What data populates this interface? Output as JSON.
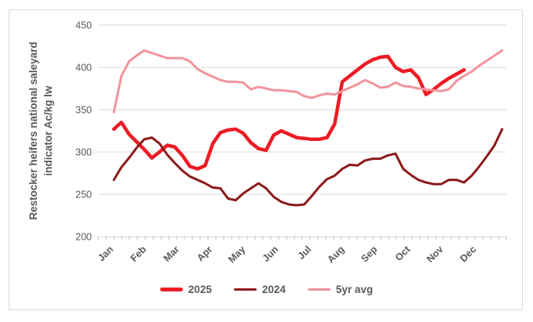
{
  "chart_data": {
    "type": "line",
    "title": "",
    "y_axis_title_line1": "Restocker heifers national saleyard",
    "y_axis_title_line2": "indicator Ac/kg lw",
    "ylim": [
      200,
      450
    ],
    "ytick_interval": 50,
    "ytick_labels": [
      "450",
      "400",
      "350",
      "300",
      "250",
      "200"
    ],
    "x_tick_labels": [
      "Jan",
      "Feb",
      "Mar",
      "Apr",
      "May",
      "Jun",
      "Jul",
      "Aug",
      "Sep",
      "Oct",
      "Nov",
      "Dec"
    ],
    "x_unit": "week",
    "points_per_year": 52,
    "grid": true,
    "legend_position": "bottom",
    "colors": {
      "series_2025": "#ed1c24",
      "series_2024": "#8b1a1a",
      "series_5yr_avg": "#f2949b",
      "axis_text": "#595959",
      "gridline": "#d9d9d9"
    },
    "series": [
      {
        "name": "2025",
        "color": "#ed1c24",
        "stroke_width": 4.5,
        "values": [
          327,
          335,
          321,
          312,
          303,
          293,
          300,
          308,
          306,
          296,
          283,
          280,
          284,
          310,
          323,
          326,
          327,
          322,
          311,
          304,
          302,
          320,
          325,
          321,
          317,
          316,
          315,
          315,
          317,
          333,
          383,
          390,
          397,
          404,
          409,
          412,
          413,
          400,
          395,
          397,
          388,
          368,
          374,
          381,
          387,
          392,
          397
        ]
      },
      {
        "name": "2024",
        "color": "#8b1a1a",
        "stroke_width": 3,
        "values": [
          267,
          282,
          293,
          305,
          315,
          317,
          310,
          297,
          287,
          278,
          271,
          267,
          263,
          258,
          257,
          245,
          243,
          251,
          257,
          263,
          257,
          247,
          241,
          238,
          237,
          238,
          248,
          259,
          268,
          272,
          280,
          285,
          284,
          290,
          292,
          292,
          296,
          298,
          280,
          273,
          267,
          264,
          262,
          262,
          267,
          267,
          264,
          272,
          283,
          295,
          308,
          327
        ]
      },
      {
        "name": "5yr avg",
        "color": "#f2949b",
        "stroke_width": 3,
        "values": [
          347,
          390,
          407,
          414,
          420,
          417,
          414,
          411,
          411,
          411,
          407,
          398,
          393,
          389,
          385,
          383,
          383,
          382,
          374,
          377,
          375,
          373,
          373,
          372,
          371,
          366,
          364,
          367,
          369,
          368,
          372,
          376,
          380,
          385,
          381,
          376,
          377,
          382,
          378,
          377,
          375,
          374,
          373,
          372,
          374,
          384,
          390,
          395,
          402,
          408,
          414,
          420
        ]
      }
    ]
  }
}
